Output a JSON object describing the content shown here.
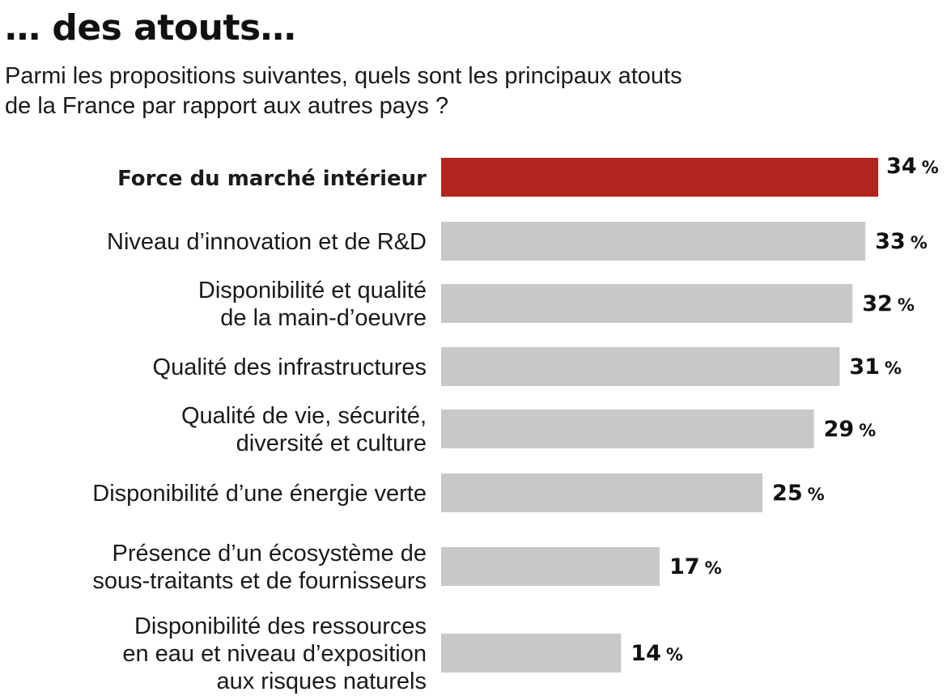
{
  "title": "… des atouts…",
  "subtitle": [
    "Parmi les propositions suivantes, quels sont les principaux atouts",
    "de la France par rapport aux autres pays ?"
  ],
  "colors": {
    "highlight": "#b2251f",
    "default": "#c8c8c8"
  },
  "chart_data": {
    "type": "bar",
    "orientation": "horizontal",
    "unit": "%",
    "categories": [
      [
        "Force du marché intérieur"
      ],
      [
        "Niveau d’innovation et de R&D"
      ],
      [
        "Disponibilité et qualité",
        "de la main-d’oeuvre"
      ],
      [
        "Qualité des infrastructures"
      ],
      [
        "Qualité de vie, sécurité,",
        "diversité et culture"
      ],
      [
        "Disponibilité d’une énergie verte"
      ],
      [
        "Présence d’un écosystème de",
        "sous-traitants et de fournisseurs"
      ],
      [
        "Disponibilité des ressources",
        "en eau et niveau d’exposition",
        "aux risques naturels"
      ]
    ],
    "values": [
      34,
      33,
      32,
      31,
      29,
      25,
      17,
      14
    ],
    "highlighted": [
      0
    ],
    "xlim": [
      0,
      34
    ],
    "grid": false,
    "legend": "none"
  }
}
